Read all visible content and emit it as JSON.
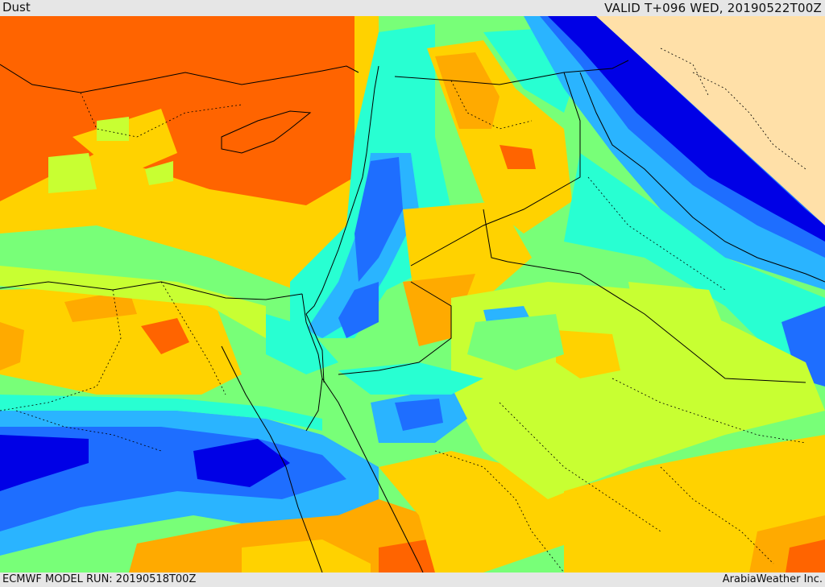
{
  "header": {
    "field_name": "Dust",
    "valid_time": "VALID T+096 WED, 20190522T00Z"
  },
  "footer": {
    "model_run": "ECMWF MODEL RUN: 20190518T00Z",
    "credit": "ArabiaWeather Inc."
  },
  "map": {
    "region": "Eastern Mediterranean, Levant, northern Red Sea and northwestern Arabian Peninsula",
    "color_scale": [
      "#0000e6",
      "#1e6eff",
      "#2ab4ff",
      "#28ffd2",
      "#78ff78",
      "#c8ff32",
      "#ffd200",
      "#ffaa00",
      "#ff6400"
    ],
    "no_data_color": "#ffe0a8"
  }
}
